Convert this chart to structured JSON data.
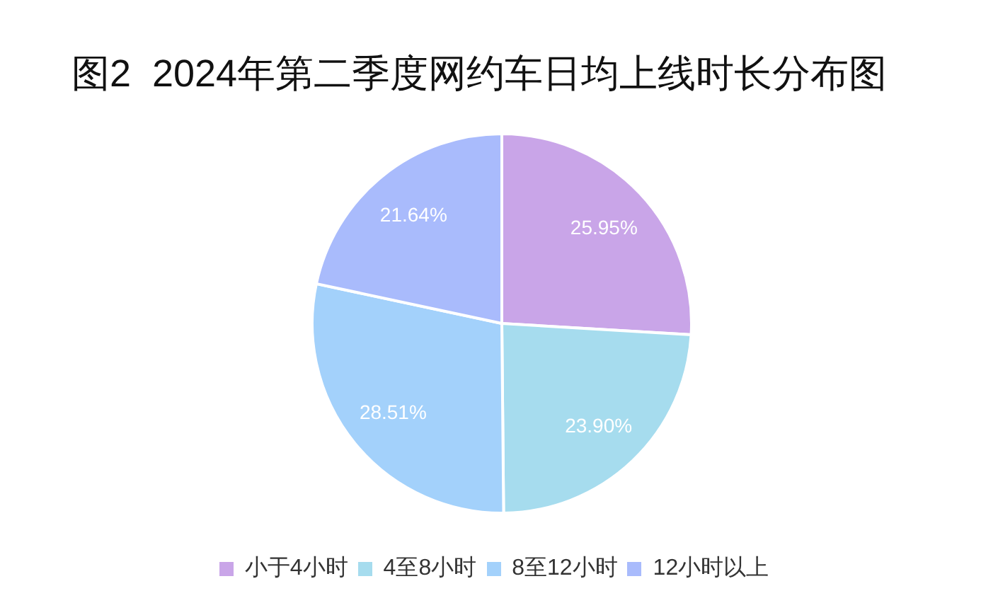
{
  "chart_data": {
    "type": "pie",
    "title": "图2  2024年第二季度网约车日均上线时长分布图",
    "categories": [
      "小于4小时",
      "4至8小时",
      "8至12小时",
      "12小时以上"
    ],
    "values": [
      25.95,
      23.9,
      28.51,
      21.64
    ],
    "colors": [
      "#c9a5e8",
      "#a6dcee",
      "#a3d1fb",
      "#a9bbfc"
    ],
    "value_labels": [
      "25.95%",
      "23.90%",
      "28.51%",
      "21.64%"
    ],
    "legend": "bottom"
  }
}
